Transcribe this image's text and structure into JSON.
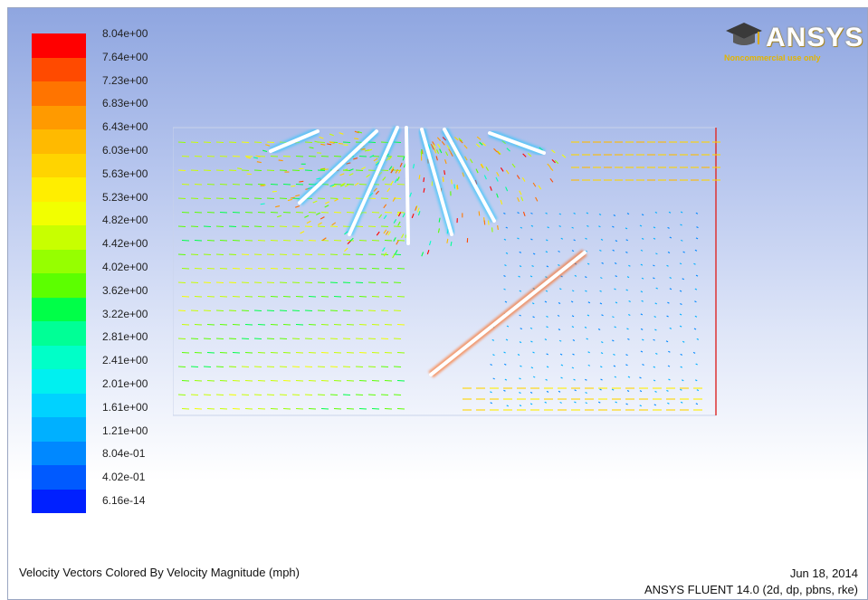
{
  "legend": {
    "labels": [
      "8.04e+00",
      "7.64e+00",
      "7.23e+00",
      "6.83e+00",
      "6.43e+00",
      "6.03e+00",
      "5.63e+00",
      "5.23e+00",
      "4.82e+00",
      "4.42e+00",
      "4.02e+00",
      "3.62e+00",
      "3.22e+00",
      "2.81e+00",
      "2.41e+00",
      "2.01e+00",
      "1.61e+00",
      "1.21e+00",
      "8.04e-01",
      "4.02e-01",
      "6.16e-14"
    ],
    "colors": [
      "#ff0000",
      "#ff4a00",
      "#ff7400",
      "#ff9a00",
      "#ffba00",
      "#ffd400",
      "#ffee00",
      "#f2ff00",
      "#c8ff00",
      "#96ff00",
      "#5cff00",
      "#00ff48",
      "#00ff96",
      "#00ffc8",
      "#00f0f0",
      "#00d2ff",
      "#00b0ff",
      "#0088ff",
      "#005aff",
      "#0020ff"
    ]
  },
  "logo": {
    "name": "ANSYS",
    "note": "Noncommercial use only"
  },
  "caption": {
    "title": "Velocity Vectors Colored By Velocity Magnitude (mph)",
    "date": "Jun 18, 2014",
    "solver": "ANSYS FLUENT 14.0 (2d, dp, pbns, rke)"
  }
}
